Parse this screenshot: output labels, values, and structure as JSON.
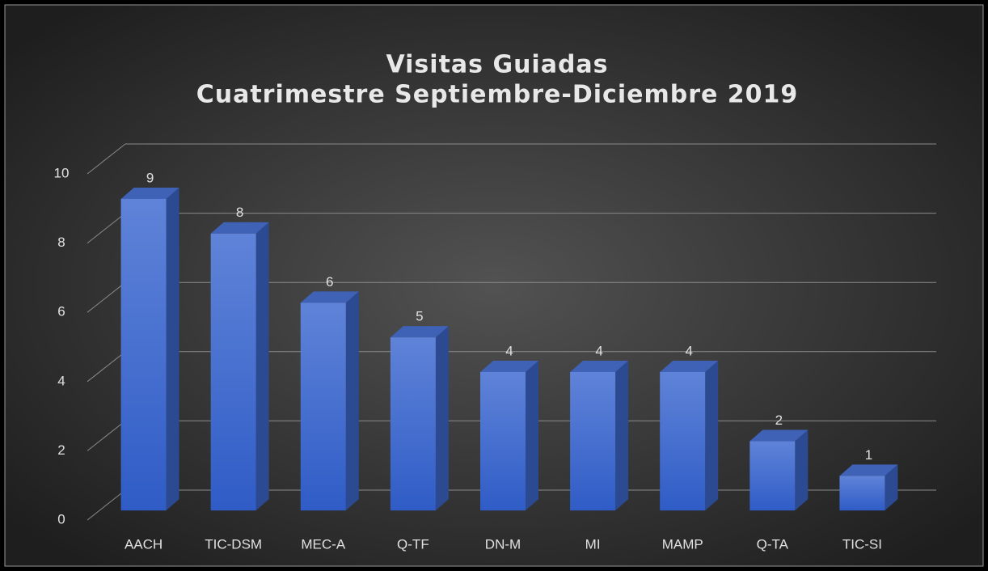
{
  "chart_data": {
    "type": "bar3d",
    "title": [
      "Visitas Guiadas",
      "Cuatrimestre Septiembre-Diciembre 2019"
    ],
    "categories": [
      "AACH",
      "TIC-DSM",
      "MEC-A",
      "Q-TF",
      "DN-M",
      "MI",
      "MAMP",
      "Q-TA",
      "TIC-SI"
    ],
    "values": [
      9,
      8,
      6,
      5,
      4,
      4,
      4,
      2,
      1
    ],
    "color": "#4a72d0",
    "ylim": [
      0,
      10
    ],
    "yticks": [
      0,
      2,
      4,
      6,
      8,
      10
    ],
    "grid": true
  }
}
